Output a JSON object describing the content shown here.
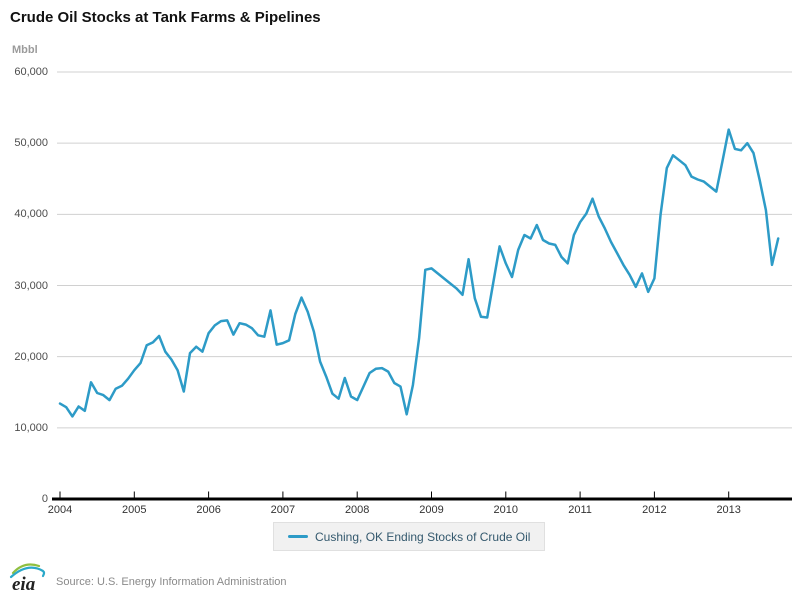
{
  "title": "Crude Oil Stocks at Tank Farms & Pipelines",
  "unit_label": "Mbbl",
  "source": "Source: U.S. Energy Information Administration",
  "logo_text": "eia",
  "legend": {
    "label": "Cushing, OK Ending Stocks of Crude Oil"
  },
  "colors": {
    "line": "#2d9bc7",
    "grid": "#d0d0d0",
    "axis": "#000000",
    "legend_text": "#34596e",
    "muted_text": "#9b9b9b"
  },
  "chart_data": {
    "type": "line",
    "title": "Crude Oil Stocks at Tank Farms & Pipelines",
    "ylabel": "Mbbl",
    "xlabel": "",
    "ylim": [
      0,
      60000
    ],
    "y_ticks": [
      0,
      10000,
      20000,
      30000,
      40000,
      50000,
      60000
    ],
    "x_tick_labels": [
      "2004",
      "2005",
      "2006",
      "2007",
      "2008",
      "2009",
      "2010",
      "2011",
      "2012",
      "2013"
    ],
    "grid": true,
    "legend_position": "bottom",
    "series": [
      {
        "name": "Cushing, OK Ending Stocks of Crude Oil",
        "start": "2004-01",
        "end": "2013-09",
        "frequency": "monthly",
        "values": [
          13400,
          12900,
          11600,
          13000,
          12400,
          16400,
          14900,
          14600,
          13900,
          15500,
          15900,
          16900,
          18100,
          19100,
          21600,
          22000,
          22900,
          20700,
          19600,
          18100,
          15100,
          20500,
          21400,
          20700,
          23300,
          24400,
          25000,
          25100,
          23100,
          24700,
          24500,
          24000,
          23000,
          22800,
          26500,
          21700,
          21900,
          22300,
          26000,
          28300,
          26300,
          23500,
          19300,
          17200,
          14800,
          14100,
          17000,
          14400,
          13900,
          15800,
          17700,
          18300,
          18400,
          17900,
          16300,
          15800,
          11900,
          16000,
          22600,
          32200,
          32400,
          31700,
          31000,
          30300,
          29600,
          28700,
          33700,
          28200,
          25600,
          25500,
          30500,
          35500,
          33100,
          31200,
          35000,
          37100,
          36600,
          38500,
          36400,
          35900,
          35700,
          34000,
          33100,
          37100,
          38900,
          40100,
          42200,
          39700,
          38000,
          36100,
          34500,
          32900,
          31500,
          29800,
          31700,
          29100,
          31000,
          40000,
          46500,
          48300,
          47600,
          46900,
          45300,
          44900,
          44600,
          43900,
          43200,
          47500,
          51900,
          49200,
          49000,
          50000,
          48600,
          44800,
          40600,
          32900,
          36600
        ]
      }
    ]
  }
}
